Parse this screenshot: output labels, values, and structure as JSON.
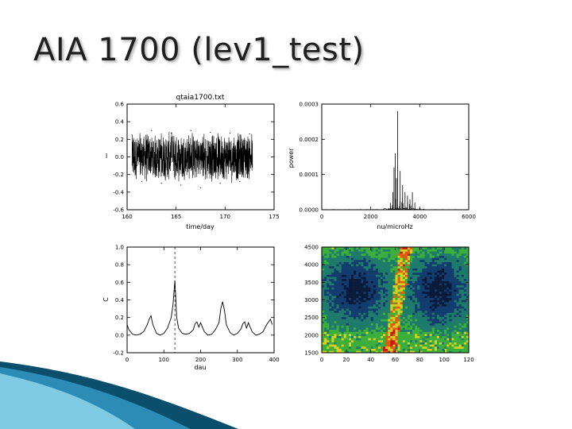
{
  "slide": {
    "title": "AIA 1700 (lev1_test)"
  },
  "colors": {
    "line": "#000000",
    "background": "#ffffff",
    "accent_dark": "#0b4f6c",
    "accent_light": "#5fb6d6"
  },
  "chart_data": [
    {
      "type": "line",
      "title": "qtaia1700.txt",
      "xlabel": "time/day",
      "ylabel": "I",
      "xlim": [
        160,
        175
      ],
      "ylim": [
        -0.6,
        0.6
      ],
      "xticks": [
        "160",
        "165",
        "170",
        "175"
      ],
      "yticks": [
        "-0.6",
        "-0.4",
        "-0.2",
        "0.0",
        "0.2",
        "0.4",
        "0.6"
      ],
      "series": [
        {
          "x": [
            160.5,
            161.5,
            162.5,
            163.5,
            164.5,
            165.5,
            166.5,
            167.5,
            168.5,
            169.5,
            170.5,
            171.5,
            172.5
          ],
          "y": [
            0.25,
            -0.28,
            0.3,
            -0.3,
            0.27,
            -0.32,
            0.3,
            -0.35,
            0.28,
            -0.3,
            0.27,
            -0.28,
            0.26
          ]
        }
      ],
      "envelope": {
        "x_start": 160.5,
        "x_end": 172.8,
        "amplitude": 0.3,
        "gaps_at": [
          164.6,
          168.1
        ]
      }
    },
    {
      "type": "line",
      "title": "",
      "xlabel": "nu/microHz",
      "ylabel": "power",
      "xlim": [
        0,
        6000
      ],
      "ylim": [
        0,
        0.0003
      ],
      "xticks": [
        "0",
        "2000",
        "4000",
        "6000"
      ],
      "yticks": [
        "0.0000",
        "0.0001",
        "0.0002",
        "0.0003"
      ],
      "series": [
        {
          "x": [
            2800,
            2900,
            2950,
            3000,
            3050,
            3100,
            3200,
            3300,
            3400,
            3500,
            3600,
            3700,
            3800
          ],
          "y": [
            2e-05,
            5e-05,
            0.00012,
            0.00016,
            9e-05,
            0.00028,
            0.00011,
            7e-05,
            5e-05,
            4e-05,
            3e-05,
            5e-05,
            2e-05
          ]
        }
      ]
    },
    {
      "type": "line",
      "title": "",
      "xlabel": "dau",
      "ylabel": "C",
      "xlim": [
        0,
        400
      ],
      "ylim": [
        -0.2,
        1.0
      ],
      "xticks": [
        "0",
        "100",
        "200",
        "300",
        "400"
      ],
      "yticks": [
        "-0.2",
        "0.0",
        "0.2",
        "0.4",
        "0.6",
        "0.8",
        "1.0"
      ],
      "dashed_vline_x": 130,
      "series": [
        {
          "x": [
            0,
            5,
            15,
            25,
            35,
            45,
            55,
            60,
            65,
            70,
            80,
            90,
            100,
            110,
            120,
            125,
            130,
            135,
            140,
            150,
            160,
            170,
            180,
            185,
            190,
            195,
            200,
            210,
            220,
            230,
            240,
            250,
            255,
            260,
            265,
            270,
            280,
            290,
            300,
            310,
            315,
            320,
            325,
            330,
            340,
            350,
            360,
            370,
            380,
            390,
            395
          ],
          "y": [
            0.12,
            0.06,
            0.01,
            0.0,
            0.01,
            0.04,
            0.12,
            0.18,
            0.22,
            0.12,
            0.02,
            0.0,
            0.02,
            0.08,
            0.2,
            0.35,
            0.62,
            0.2,
            0.08,
            0.02,
            0.01,
            0.02,
            0.06,
            0.13,
            0.15,
            0.09,
            0.14,
            0.04,
            0.0,
            0.01,
            0.06,
            0.14,
            0.3,
            0.38,
            0.28,
            0.12,
            0.03,
            0.0,
            0.02,
            0.07,
            0.13,
            0.15,
            0.08,
            0.14,
            0.04,
            0.0,
            0.01,
            0.04,
            0.12,
            0.18,
            0.12
          ]
        }
      ]
    },
    {
      "type": "heatmap",
      "title": "",
      "xlim": [
        0,
        120
      ],
      "ylim": [
        1500,
        4500
      ],
      "xticks": [
        "0",
        "20",
        "40",
        "60",
        "80",
        "100",
        "120"
      ],
      "yticks": [
        "1500",
        "2000",
        "2500",
        "3000",
        "3500",
        "4000",
        "4500"
      ],
      "colormap": [
        "#0a1a3a",
        "#123c6e",
        "#1e7a6a",
        "#3cae3c",
        "#d8d020",
        "#e05a10",
        "#c81818"
      ]
    }
  ]
}
